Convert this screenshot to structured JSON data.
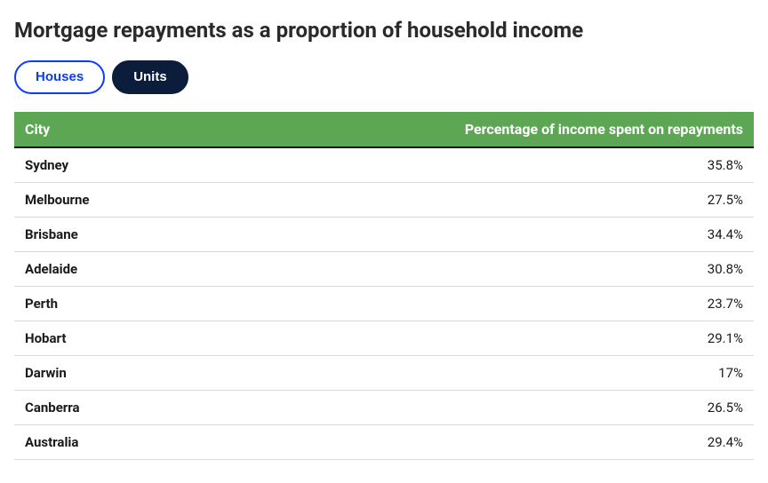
{
  "title": "Mortgage repayments as a proportion of household income",
  "tabs": [
    {
      "label": "Houses",
      "active": false
    },
    {
      "label": "Units",
      "active": true
    }
  ],
  "table": {
    "type": "table",
    "header_bg": "#5ca654",
    "header_text_color": "#ffffff",
    "header_border_bottom": "#000000",
    "row_border_color": "#d9d9d9",
    "columns": [
      {
        "label": "City",
        "align": "left"
      },
      {
        "label": "Percentage of income spent on repayments",
        "align": "right"
      }
    ],
    "rows": [
      {
        "city": "Sydney",
        "value": "35.8%"
      },
      {
        "city": "Melbourne",
        "value": "27.5%"
      },
      {
        "city": "Brisbane",
        "value": "34.4%"
      },
      {
        "city": "Adelaide",
        "value": "30.8%"
      },
      {
        "city": "Perth",
        "value": "23.7%"
      },
      {
        "city": "Hobart",
        "value": "29.1%"
      },
      {
        "city": "Darwin",
        "value": "17%"
      },
      {
        "city": "Canberra",
        "value": "26.5%"
      },
      {
        "city": "Australia",
        "value": "29.4%"
      }
    ]
  },
  "colors": {
    "tab_inactive_border": "#0a3cff",
    "tab_inactive_text": "#0a3cff",
    "tab_inactive_bg": "#ffffff",
    "tab_active_bg": "#0b1d3a",
    "tab_active_text": "#ffffff",
    "title_text": "#2a2a2a",
    "body_text": "#1a1a1a"
  }
}
